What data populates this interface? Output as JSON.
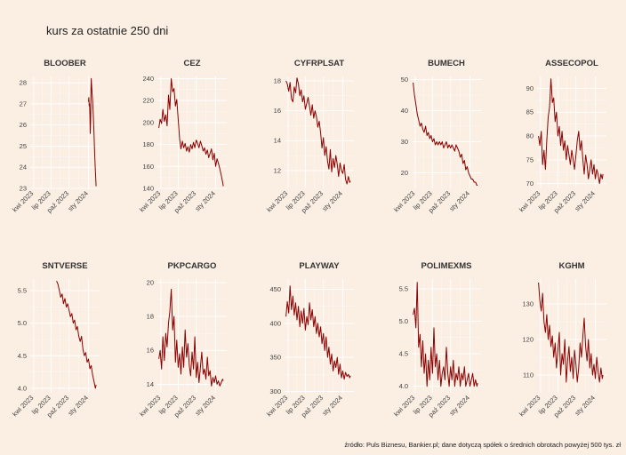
{
  "title": "kurs za ostatnie 250 dni",
  "source": "źródło: Puls Biznesu, Bankier.pl; dane dotyczą spółek o średnich obrotach powyżej 500 tys. zł",
  "line_color": "#8b0000",
  "background_color": "#fbeee2",
  "chart_data": [
    {
      "type": "line",
      "title": "BLOOBER",
      "x_ticks": [
        "kwi 2023",
        "lip 2023",
        "paź 2023",
        "sty 2024"
      ],
      "y_ticks": [
        23,
        24,
        25,
        26,
        27,
        28
      ],
      "ylim": [
        23,
        28.3
      ],
      "x_range": [
        0,
        1
      ],
      "series": [
        {
          "x": [
            0.84,
            0.845,
            0.85,
            0.855,
            0.86,
            0.865,
            0.87,
            0.875,
            0.88,
            0.89,
            0.9,
            0.91,
            0.92,
            0.93,
            0.94,
            0.95
          ],
          "values": [
            27.1,
            27.3,
            26.9,
            27.0,
            26.5,
            25.6,
            26.2,
            27.6,
            28.2,
            27.6,
            27.1,
            26.4,
            25.5,
            24.6,
            23.8,
            23.1
          ]
        }
      ]
    },
    {
      "type": "line",
      "title": "CEZ",
      "x_ticks": [
        "kwi 2023",
        "lip 2023",
        "paź 2023",
        "sty 2024"
      ],
      "y_ticks": [
        140,
        160,
        180,
        200,
        220,
        240
      ],
      "ylim": [
        140,
        242
      ],
      "x_range": [
        0,
        1
      ],
      "series": [
        {
          "x": [
            0.02,
            0.04,
            0.06,
            0.08,
            0.1,
            0.12,
            0.14,
            0.16,
            0.18,
            0.2,
            0.22,
            0.24,
            0.26,
            0.28,
            0.3,
            0.32,
            0.34,
            0.36,
            0.38,
            0.4,
            0.42,
            0.44,
            0.46,
            0.48,
            0.5,
            0.52,
            0.54,
            0.56,
            0.58,
            0.6,
            0.62,
            0.64,
            0.66,
            0.68,
            0.7,
            0.72,
            0.74,
            0.76,
            0.78,
            0.8,
            0.82,
            0.84,
            0.86,
            0.88,
            0.9,
            0.92,
            0.94,
            0.95
          ],
          "values": [
            195,
            203,
            199,
            212,
            201,
            207,
            197,
            225,
            212,
            240,
            228,
            231,
            215,
            221,
            203,
            185,
            176,
            183,
            177,
            181,
            174,
            178,
            173,
            180,
            176,
            182,
            177,
            184,
            181,
            177,
            183,
            179,
            174,
            177,
            171,
            175,
            168,
            172,
            176,
            166,
            172,
            160,
            167,
            163,
            158,
            152,
            146,
            142
          ]
        }
      ]
    },
    {
      "type": "line",
      "title": "CYFRPLSAT",
      "x_ticks": [
        "kwi 2023",
        "lip 2023",
        "paź 2023",
        "sty 2024"
      ],
      "y_ticks": [
        12,
        14,
        16,
        18
      ],
      "ylim": [
        10.8,
        18.3
      ],
      "x_range": [
        0,
        1
      ],
      "series": [
        {
          "x": [
            0.02,
            0.04,
            0.06,
            0.08,
            0.1,
            0.12,
            0.14,
            0.16,
            0.18,
            0.2,
            0.22,
            0.24,
            0.26,
            0.28,
            0.3,
            0.32,
            0.34,
            0.36,
            0.38,
            0.4,
            0.42,
            0.44,
            0.46,
            0.48,
            0.5,
            0.52,
            0.54,
            0.56,
            0.58,
            0.6,
            0.62,
            0.64,
            0.66,
            0.68,
            0.7,
            0.72,
            0.74,
            0.76,
            0.78,
            0.8,
            0.82,
            0.84,
            0.86,
            0.88,
            0.9,
            0.92,
            0.94,
            0.95
          ],
          "values": [
            18.0,
            17.8,
            17.3,
            17.9,
            16.8,
            16.6,
            17.6,
            17.2,
            18.2,
            17.8,
            17.0,
            17.4,
            16.6,
            17.0,
            16.1,
            16.5,
            16.9,
            16.3,
            15.7,
            16.4,
            15.5,
            16.0,
            15.6,
            14.9,
            15.3,
            14.5,
            13.5,
            14.2,
            13.0,
            13.6,
            12.6,
            12.1,
            13.4,
            11.9,
            12.8,
            12.2,
            13.0,
            12.4,
            11.6,
            12.5,
            12.0,
            11.8,
            12.4,
            11.4,
            11.1,
            11.6,
            11.2,
            11.3
          ]
        }
      ]
    },
    {
      "type": "line",
      "title": "BUMECH",
      "x_ticks": [
        "kwi 2023",
        "lip 2023",
        "paź 2023",
        "sty 2024"
      ],
      "y_ticks": [
        20,
        30,
        40,
        50
      ],
      "ylim": [
        15,
        51
      ],
      "x_range": [
        0,
        1
      ],
      "series": [
        {
          "x": [
            0.02,
            0.04,
            0.06,
            0.08,
            0.1,
            0.12,
            0.14,
            0.16,
            0.18,
            0.2,
            0.22,
            0.24,
            0.26,
            0.28,
            0.3,
            0.32,
            0.34,
            0.36,
            0.38,
            0.4,
            0.42,
            0.44,
            0.46,
            0.48,
            0.5,
            0.52,
            0.54,
            0.56,
            0.58,
            0.6,
            0.62,
            0.64,
            0.66,
            0.68,
            0.7,
            0.72,
            0.74,
            0.76,
            0.78,
            0.8,
            0.82,
            0.84,
            0.86,
            0.88,
            0.9,
            0.92,
            0.94,
            0.95
          ],
          "values": [
            49,
            45,
            42,
            39,
            37,
            35,
            36,
            34,
            33,
            35,
            32,
            33,
            31,
            32,
            30,
            31,
            29,
            30,
            29,
            30,
            29,
            30,
            28,
            29,
            30,
            28,
            29,
            28,
            29,
            28,
            27,
            29,
            28,
            27,
            25,
            26,
            23,
            24,
            21,
            22,
            20,
            19,
            18,
            18,
            17,
            17,
            16,
            16
          ]
        }
      ]
    },
    {
      "type": "line",
      "title": "ASSECOPOL",
      "x_ticks": [
        "kwi 2023",
        "lip 2023",
        "paź 2023",
        "sty 2024"
      ],
      "y_ticks": [
        70,
        75,
        80,
        85,
        90
      ],
      "ylim": [
        69,
        92.5
      ],
      "x_range": [
        0,
        1
      ],
      "series": [
        {
          "x": [
            0.02,
            0.04,
            0.06,
            0.08,
            0.1,
            0.12,
            0.14,
            0.16,
            0.18,
            0.2,
            0.22,
            0.24,
            0.26,
            0.28,
            0.3,
            0.32,
            0.34,
            0.36,
            0.38,
            0.4,
            0.42,
            0.44,
            0.46,
            0.48,
            0.5,
            0.52,
            0.54,
            0.56,
            0.58,
            0.6,
            0.62,
            0.64,
            0.66,
            0.68,
            0.7,
            0.72,
            0.74,
            0.76,
            0.78,
            0.8,
            0.82,
            0.84,
            0.86,
            0.88,
            0.9,
            0.92,
            0.94,
            0.95
          ],
          "values": [
            80,
            78,
            81,
            74,
            77,
            73,
            79,
            84,
            86,
            92,
            87,
            88,
            83,
            85,
            80,
            82,
            78,
            81,
            77,
            79,
            75,
            78,
            76,
            74,
            77,
            75,
            73,
            76,
            79,
            81,
            77,
            79,
            75,
            72,
            76,
            74,
            71,
            73,
            75,
            72,
            74,
            71,
            73,
            72,
            70,
            72,
            71,
            72
          ]
        }
      ]
    },
    {
      "type": "line",
      "title": "SNTVERSE",
      "x_ticks": [
        "kwi 2023",
        "lip 2023",
        "paź 2023",
        "sty 2024"
      ],
      "y_ticks": [
        4.0,
        4.5,
        5.0,
        5.5
      ],
      "ylim": [
        3.93,
        5.68
      ],
      "x_range": [
        0,
        1
      ],
      "series": [
        {
          "x": [
            0.38,
            0.4,
            0.42,
            0.44,
            0.46,
            0.48,
            0.5,
            0.52,
            0.54,
            0.56,
            0.58,
            0.6,
            0.62,
            0.64,
            0.66,
            0.68,
            0.7,
            0.72,
            0.74,
            0.76,
            0.78,
            0.8,
            0.82,
            0.84,
            0.86,
            0.88,
            0.9,
            0.92,
            0.94,
            0.95
          ],
          "values": [
            5.65,
            5.6,
            5.5,
            5.4,
            5.45,
            5.3,
            5.38,
            5.25,
            5.3,
            5.2,
            5.1,
            5.15,
            5.0,
            5.05,
            4.9,
            4.95,
            4.8,
            4.72,
            4.8,
            4.6,
            4.5,
            4.55,
            4.4,
            4.45,
            4.3,
            4.35,
            4.2,
            4.1,
            4.0,
            4.05
          ]
        }
      ]
    },
    {
      "type": "line",
      "title": "PKPCARGO",
      "x_ticks": [
        "kwi 2023",
        "lip 2023",
        "paź 2023",
        "sty 2024"
      ],
      "y_ticks": [
        14,
        16,
        18,
        20
      ],
      "ylim": [
        13.5,
        20.2
      ],
      "x_range": [
        0,
        1
      ],
      "series": [
        {
          "x": [
            0.02,
            0.04,
            0.06,
            0.08,
            0.1,
            0.12,
            0.14,
            0.16,
            0.18,
            0.2,
            0.22,
            0.24,
            0.26,
            0.28,
            0.3,
            0.32,
            0.34,
            0.36,
            0.38,
            0.4,
            0.42,
            0.44,
            0.46,
            0.48,
            0.5,
            0.52,
            0.54,
            0.56,
            0.58,
            0.6,
            0.62,
            0.64,
            0.66,
            0.68,
            0.7,
            0.72,
            0.74,
            0.76,
            0.78,
            0.8,
            0.82,
            0.84,
            0.86,
            0.88,
            0.9,
            0.92,
            0.94,
            0.95
          ],
          "values": [
            15.5,
            16.0,
            14.9,
            16.8,
            15.4,
            17.0,
            16.2,
            17.6,
            18.3,
            19.6,
            17.2,
            18.0,
            15.3,
            16.6,
            15.0,
            15.8,
            14.6,
            16.2,
            15.0,
            17.2,
            15.6,
            16.4,
            15.1,
            14.5,
            15.9,
            14.9,
            16.8,
            14.4,
            15.3,
            14.1,
            15.0,
            15.9,
            14.6,
            14.9,
            14.3,
            15.6,
            14.5,
            14.8,
            13.9,
            14.4,
            14.1,
            14.5,
            14.0,
            14.2,
            13.9,
            14.1,
            14.3,
            14.2
          ]
        }
      ]
    },
    {
      "type": "line",
      "title": "PLAYWAY",
      "x_ticks": [
        "kwi 2023",
        "lip 2023",
        "paź 2023",
        "sty 2024"
      ],
      "y_ticks": [
        300,
        350,
        400,
        450
      ],
      "ylim": [
        298,
        465
      ],
      "x_range": [
        0,
        1
      ],
      "series": [
        {
          "x": [
            0.02,
            0.04,
            0.06,
            0.08,
            0.1,
            0.12,
            0.14,
            0.16,
            0.18,
            0.2,
            0.22,
            0.24,
            0.26,
            0.28,
            0.3,
            0.32,
            0.34,
            0.36,
            0.38,
            0.4,
            0.42,
            0.44,
            0.46,
            0.48,
            0.5,
            0.52,
            0.54,
            0.56,
            0.58,
            0.6,
            0.62,
            0.64,
            0.66,
            0.68,
            0.7,
            0.72,
            0.74,
            0.76,
            0.78,
            0.8,
            0.82,
            0.84,
            0.86,
            0.88,
            0.9,
            0.92,
            0.94,
            0.95
          ],
          "values": [
            410,
            432,
            415,
            455,
            420,
            440,
            412,
            430,
            405,
            425,
            395,
            418,
            400,
            422,
            390,
            410,
            398,
            430,
            405,
            420,
            395,
            410,
            385,
            400,
            380,
            395,
            370,
            385,
            360,
            380,
            350,
            365,
            340,
            355,
            330,
            345,
            335,
            350,
            325,
            340,
            320,
            330,
            318,
            328,
            322,
            325,
            320,
            323
          ]
        }
      ]
    },
    {
      "type": "line",
      "title": "POLIMEXMS",
      "x_ticks": [
        "kwi 2023",
        "lip 2023",
        "paź 2023",
        "sty 2024"
      ],
      "y_ticks": [
        4.0,
        4.5,
        5.0,
        5.5
      ],
      "ylim": [
        3.9,
        5.65
      ],
      "x_range": [
        0,
        1
      ],
      "series": [
        {
          "x": [
            0.02,
            0.04,
            0.06,
            0.08,
            0.1,
            0.12,
            0.14,
            0.16,
            0.18,
            0.2,
            0.22,
            0.24,
            0.26,
            0.28,
            0.3,
            0.32,
            0.34,
            0.36,
            0.38,
            0.4,
            0.42,
            0.44,
            0.46,
            0.48,
            0.5,
            0.52,
            0.54,
            0.56,
            0.58,
            0.6,
            0.62,
            0.64,
            0.66,
            0.68,
            0.7,
            0.72,
            0.74,
            0.76,
            0.78,
            0.8,
            0.82,
            0.84,
            0.86,
            0.88,
            0.9,
            0.92,
            0.94,
            0.95
          ],
          "values": [
            5.1,
            5.2,
            4.9,
            5.6,
            4.6,
            4.8,
            4.3,
            4.7,
            4.2,
            4.5,
            4.0,
            4.4,
            4.1,
            4.6,
            4.2,
            4.9,
            4.3,
            4.5,
            4.1,
            4.4,
            4.0,
            4.2,
            4.3,
            4.1,
            4.6,
            4.2,
            4.0,
            4.3,
            4.1,
            4.4,
            4.0,
            4.2,
            4.1,
            4.3,
            4.0,
            4.2,
            4.1,
            4.3,
            4.0,
            4.1,
            4.2,
            4.0,
            4.1,
            4.2,
            4.0,
            4.1,
            4.0,
            4.05
          ]
        }
      ]
    },
    {
      "type": "line",
      "title": "KGHM",
      "x_ticks": [
        "kwi 2023",
        "lip 2023",
        "paź 2023",
        "sty 2024"
      ],
      "y_ticks": [
        110,
        120,
        130
      ],
      "ylim": [
        105,
        137
      ],
      "x_range": [
        0,
        1
      ],
      "series": [
        {
          "x": [
            0.02,
            0.04,
            0.06,
            0.08,
            0.1,
            0.12,
            0.14,
            0.16,
            0.18,
            0.2,
            0.22,
            0.24,
            0.26,
            0.28,
            0.3,
            0.32,
            0.34,
            0.36,
            0.38,
            0.4,
            0.42,
            0.44,
            0.46,
            0.48,
            0.5,
            0.52,
            0.54,
            0.56,
            0.58,
            0.6,
            0.62,
            0.64,
            0.66,
            0.68,
            0.7,
            0.72,
            0.74,
            0.76,
            0.78,
            0.8,
            0.82,
            0.84,
            0.86,
            0.88,
            0.9,
            0.92,
            0.94,
            0.95
          ],
          "values": [
            136,
            131,
            128,
            133,
            125,
            122,
            127,
            120,
            124,
            118,
            121,
            115,
            119,
            112,
            117,
            122,
            110,
            116,
            113,
            120,
            108,
            114,
            118,
            111,
            115,
            109,
            117,
            113,
            108,
            112,
            119,
            115,
            121,
            126,
            118,
            114,
            120,
            112,
            116,
            110,
            113,
            109,
            115,
            111,
            108,
            112,
            109,
            110
          ]
        }
      ]
    }
  ]
}
